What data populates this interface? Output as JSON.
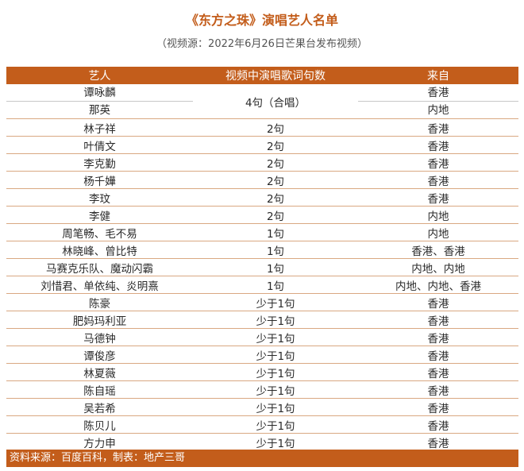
{
  "title": "《东方之珠》演唱艺人名单",
  "subtitle": "（视频源：2022年6月26日芒果台发布视频）",
  "headers": [
    "艺人",
    "视频中演唱歌词句数",
    "来自"
  ],
  "merged": {
    "artists": [
      "谭咏麟",
      "那英"
    ],
    "lines": "4句（合唱）",
    "origins": [
      "香港",
      "内地"
    ]
  },
  "rows": [
    {
      "artist": "林子祥",
      "lines": "2句",
      "origin": "香港"
    },
    {
      "artist": "叶倩文",
      "lines": "2句",
      "origin": "香港"
    },
    {
      "artist": "李克勤",
      "lines": "2句",
      "origin": "香港"
    },
    {
      "artist": "杨千嬅",
      "lines": "2句",
      "origin": "香港"
    },
    {
      "artist": "李玟",
      "lines": "2句",
      "origin": "香港"
    },
    {
      "artist": "李健",
      "lines": "2句",
      "origin": "内地"
    },
    {
      "artist": "周笔畅、毛不易",
      "lines": "1句",
      "origin": "内地"
    },
    {
      "artist": "林晓峰、曾比特",
      "lines": "1句",
      "origin": "香港、香港"
    },
    {
      "artist": "马赛克乐队、魔动闪霸",
      "lines": "1句",
      "origin": "内地、内地"
    },
    {
      "artist": "刘惜君、单依纯、炎明熹",
      "lines": "1句",
      "origin": "内地、内地、香港"
    },
    {
      "artist": "陈豪",
      "lines": "少于1句",
      "origin": "香港"
    },
    {
      "artist": "肥妈玛利亚",
      "lines": "少于1句",
      "origin": "香港"
    },
    {
      "artist": "马德钟",
      "lines": "少于1句",
      "origin": "香港"
    },
    {
      "artist": "谭俊彦",
      "lines": "少于1句",
      "origin": "香港"
    },
    {
      "artist": "林夏薇",
      "lines": "少于1句",
      "origin": "香港"
    },
    {
      "artist": "陈自瑶",
      "lines": "少于1句",
      "origin": "香港"
    },
    {
      "artist": "吴若希",
      "lines": "少于1句",
      "origin": "香港"
    },
    {
      "artist": "陈贝儿",
      "lines": "少于1句",
      "origin": "香港"
    },
    {
      "artist": "方力申",
      "lines": "少于1句",
      "origin": "香港"
    }
  ],
  "footer": "资料来源：百度百科，制表：地产三哥",
  "colors": {
    "accent": "#c35d1b",
    "divider": "#d9a882"
  }
}
